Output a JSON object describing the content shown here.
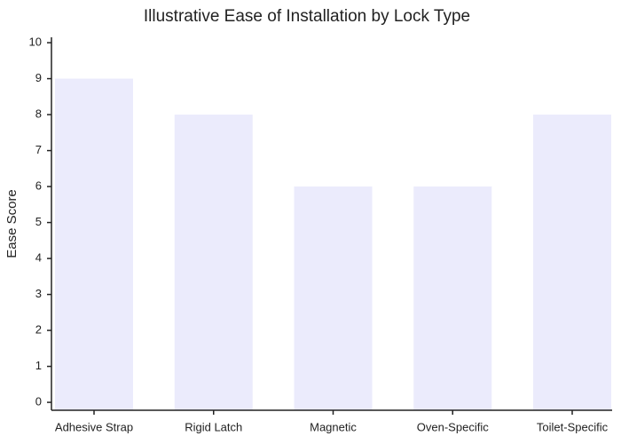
{
  "chart_data": {
    "type": "bar",
    "title": "Illustrative Ease of Installation by Lock Type",
    "y_label": "Ease Score",
    "categories": [
      "Adhesive Strap",
      "Rigid Latch",
      "Magnetic",
      "Oven-Specific",
      "Toilet-Specific"
    ],
    "values": [
      9,
      8,
      6,
      6,
      8
    ],
    "color": "#ebebfc",
    "ylim": [
      -0.22,
      10.15
    ],
    "yticks": [
      0,
      1,
      2,
      3,
      4,
      5,
      6,
      7,
      8,
      9,
      10
    ],
    "grid": false
  }
}
